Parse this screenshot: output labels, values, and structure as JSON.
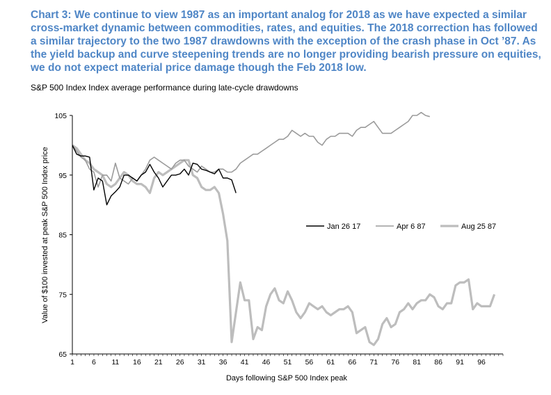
{
  "heading": "Chart 3: We continue to view 1987 as an important analog for 2018 as we have expected a similar cross-market dynamic between commodities, rates, and equities.  The 2018 correction has followed a similar trajectory to the two 1987 drawdowns with the exception of the crash phase in Oct ’87.  As the yield backup and curve steepening trends are no longer providing bearish pressure on equities, we do not expect material price damage though the Feb 2018 low.",
  "chart_data": {
    "type": "line",
    "title": "S&P 500 Index Index average performance during late-cycle drawdowns",
    "xlabel": "Days following S&P 500 Index peak",
    "ylabel": "Value of $100 invested at peak S&P 500 Index price",
    "xlim": [
      1,
      101
    ],
    "ylim": [
      65,
      105
    ],
    "xticks": [
      1,
      6,
      11,
      16,
      21,
      26,
      31,
      36,
      41,
      46,
      51,
      56,
      61,
      66,
      71,
      76,
      81,
      86,
      91,
      96
    ],
    "yticks": [
      65,
      75,
      85,
      95,
      105
    ],
    "legend_position": "center-right",
    "series": [
      {
        "name": "Jan 26 17",
        "color": "#000000",
        "values": [
          100.0,
          98.5,
          98.2,
          98.2,
          98.0,
          92.5,
          94.5,
          94.0,
          90.0,
          91.5,
          92.2,
          93.0,
          95.0,
          95.0,
          94.5,
          94.0,
          95.0,
          95.5,
          96.8,
          95.5,
          94.5,
          93.0,
          94.0,
          95.0,
          95.0,
          95.2,
          96.0,
          95.0,
          97.0,
          96.8,
          96.0,
          95.8,
          95.5,
          95.2,
          96.0,
          94.5,
          94.5,
          94.2,
          92.0
        ]
      },
      {
        "name": "Apr 6 87",
        "color": "#9b9b9b",
        "values": [
          100.0,
          99.0,
          98.0,
          97.5,
          96.0,
          95.5,
          93.0,
          95.0,
          95.0,
          94.0,
          97.0,
          94.5,
          94.0,
          93.5,
          94.5,
          94.0,
          95.0,
          96.0,
          97.5,
          98.0,
          97.5,
          97.0,
          96.5,
          96.0,
          97.0,
          97.5,
          97.5,
          96.5,
          96.0,
          95.5,
          96.5,
          96.0,
          95.5,
          95.5,
          96.0,
          96.0,
          95.5,
          95.5,
          96.0,
          97.0,
          97.5,
          98.0,
          98.5,
          98.5,
          99.0,
          99.5,
          100.0,
          100.5,
          101.0,
          101.0,
          101.5,
          102.5,
          102.0,
          101.5,
          102.0,
          101.5,
          101.5,
          100.5,
          100.0,
          101.0,
          101.5,
          101.5,
          102.0,
          102.0,
          102.0,
          101.5,
          102.5,
          103.0,
          103.0,
          103.5,
          104.0,
          103.0,
          102.0,
          102.0,
          102.0,
          102.5,
          103.0,
          103.5,
          104.0,
          105.0,
          105.0,
          105.5,
          105.0,
          104.8
        ]
      },
      {
        "name": "Aug 25 87",
        "color": "#bdbdbd",
        "values": [
          100.0,
          99.5,
          98.5,
          97.5,
          97.0,
          96.0,
          95.5,
          95.0,
          93.5,
          93.0,
          93.5,
          94.5,
          95.5,
          95.0,
          94.0,
          93.5,
          93.5,
          93.0,
          92.0,
          94.5,
          95.5,
          95.0,
          95.5,
          96.0,
          96.5,
          97.0,
          97.5,
          97.5,
          95.0,
          94.5,
          93.0,
          92.5,
          92.5,
          93.0,
          92.0,
          88.5,
          84.0,
          67.0,
          72.0,
          77.0,
          74.0,
          74.0,
          67.5,
          69.5,
          69.0,
          73.0,
          75.0,
          76.0,
          74.0,
          73.5,
          75.5,
          74.0,
          72.0,
          71.0,
          72.0,
          73.5,
          73.0,
          72.5,
          73.0,
          72.0,
          71.5,
          72.0,
          72.5,
          72.5,
          73.0,
          72.0,
          68.5,
          69.0,
          69.5,
          67.0,
          66.5,
          67.5,
          70.0,
          71.0,
          69.5,
          70.0,
          72.0,
          72.5,
          73.5,
          72.5,
          73.5,
          74.0,
          74.0,
          75.0,
          74.5,
          73.0,
          72.5,
          73.5,
          73.5,
          76.5,
          77.0,
          77.0,
          77.5,
          72.5,
          73.5,
          73.0,
          73.0,
          73.0,
          75.0
        ]
      }
    ]
  }
}
